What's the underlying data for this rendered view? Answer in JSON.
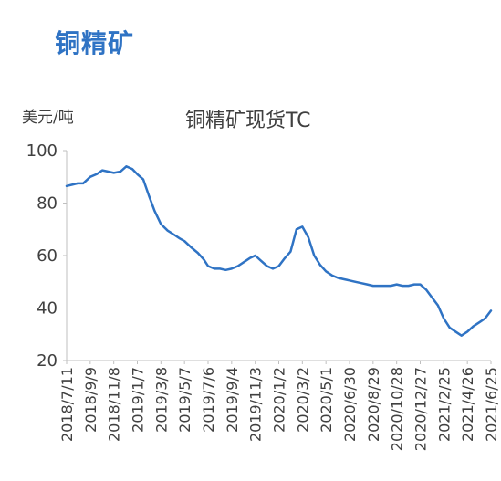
{
  "heading": "铜精矿",
  "chart_data": {
    "type": "line",
    "title": "铜精矿现货TC",
    "ylabel": "美元/吨",
    "xlabel": "",
    "ylim": [
      20,
      100
    ],
    "yticks": [
      20,
      40,
      60,
      80,
      100
    ],
    "grid": false,
    "x_tick_labels": [
      "2018/7/11",
      "2018/9/9",
      "2018/11/8",
      "2019/1/7",
      "2019/3/8",
      "2019/5/7",
      "2019/7/6",
      "2019/9/4",
      "2019/11/3",
      "2020/1/2",
      "2020/3/2",
      "2020/5/1",
      "2020/6/30",
      "2020/8/29",
      "2020/10/28",
      "2020/12/27",
      "2021/2/25",
      "2021/4/26",
      "2021/6/25"
    ],
    "series": [
      {
        "color": "#2f73c4",
        "x": [
          "2018/7/11",
          "2018/7/25",
          "2018/8/8",
          "2018/8/22",
          "2018/9/9",
          "2018/9/25",
          "2018/10/10",
          "2018/10/25",
          "2018/11/8",
          "2018/11/25",
          "2018/12/10",
          "2018/12/25",
          "2019/1/7",
          "2019/1/22",
          "2019/2/5",
          "2019/2/20",
          "2019/3/8",
          "2019/3/25",
          "2019/4/10",
          "2019/4/25",
          "2019/5/7",
          "2019/5/25",
          "2019/6/10",
          "2019/6/25",
          "2019/7/6",
          "2019/7/22",
          "2019/8/5",
          "2019/8/20",
          "2019/9/4",
          "2019/9/20",
          "2019/10/5",
          "2019/10/20",
          "2019/11/3",
          "2019/11/18",
          "2019/12/3",
          "2019/12/18",
          "2020/1/2",
          "2020/1/17",
          "2020/2/1",
          "2020/2/16",
          "2020/3/2",
          "2020/3/17",
          "2020/4/1",
          "2020/4/16",
          "2020/5/1",
          "2020/5/16",
          "2020/5/31",
          "2020/6/15",
          "2020/6/30",
          "2020/7/15",
          "2020/7/30",
          "2020/8/14",
          "2020/8/29",
          "2020/9/13",
          "2020/9/28",
          "2020/10/13",
          "2020/10/28",
          "2020/11/12",
          "2020/11/27",
          "2020/12/12",
          "2020/12/27",
          "2021/1/11",
          "2021/1/26",
          "2021/2/10",
          "2021/2/25",
          "2021/3/12",
          "2021/3/27",
          "2021/4/11",
          "2021/4/26",
          "2021/5/11",
          "2021/5/26",
          "2021/6/10",
          "2021/6/25"
        ],
        "values": [
          86.5,
          87,
          87.5,
          87.5,
          90,
          91,
          92.5,
          92,
          91.5,
          92,
          94,
          93,
          91,
          89,
          83,
          77,
          72,
          69.5,
          68,
          66.5,
          65.5,
          63,
          61,
          58.5,
          56,
          55,
          55,
          54.5,
          55,
          56,
          57.5,
          59,
          60,
          58,
          56,
          55,
          56,
          59,
          61.5,
          70,
          71,
          67,
          60,
          56.5,
          54,
          52.5,
          51.5,
          51,
          50.5,
          50,
          49.5,
          49,
          48.5,
          48.5,
          48.5,
          48.5,
          49,
          48.5,
          48.5,
          49,
          49,
          47,
          44,
          41,
          36,
          32.5,
          31,
          29.5,
          31,
          33,
          34.5,
          36,
          39
        ]
      }
    ]
  }
}
